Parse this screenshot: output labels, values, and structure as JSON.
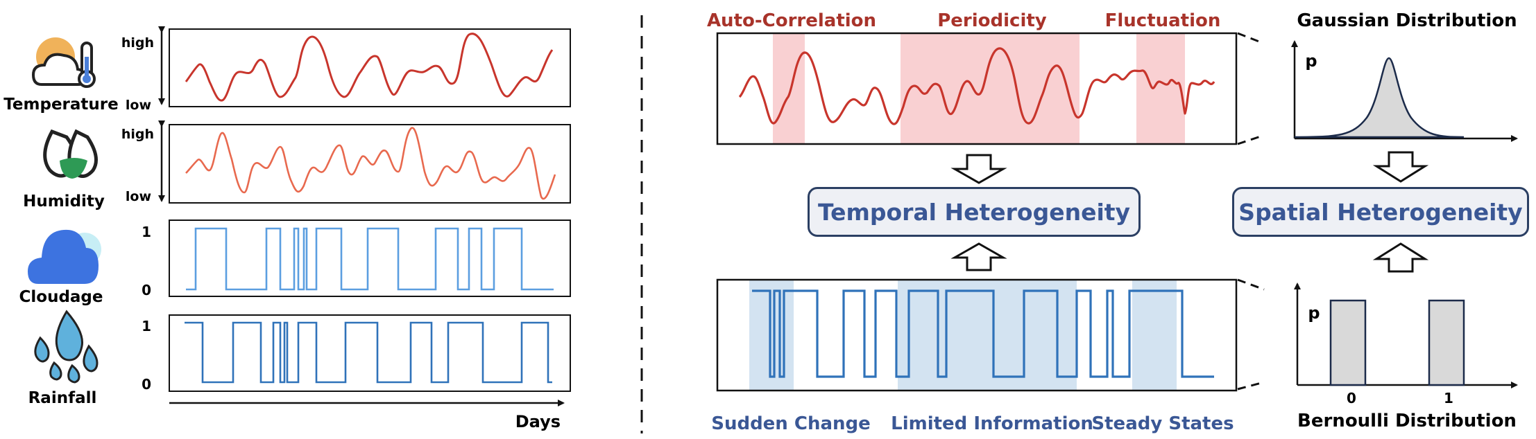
{
  "left": {
    "variables": [
      {
        "name": "Temperature",
        "icon": "thermometer-cloud-icon",
        "y_top": "high",
        "y_bottom": "low",
        "color": "#c8352c"
      },
      {
        "name": "Humidity",
        "icon": "water-drops-icon",
        "y_top": "high",
        "y_bottom": "low",
        "color": "#e8694e"
      },
      {
        "name": "Cloudage",
        "icon": "cloud-icon",
        "y_top": "1",
        "y_bottom": "0",
        "color": "#5b9ee0"
      },
      {
        "name": "Rainfall",
        "icon": "raindrops-icon",
        "y_top": "1",
        "y_bottom": "0",
        "color": "#2f72b9"
      }
    ],
    "x_axis_label": "Days"
  },
  "right": {
    "top_annotations": [
      "Auto-Correlation",
      "Periodicity",
      "Fluctuation"
    ],
    "bottom_annotations": [
      "Sudden Change",
      "Limited Information",
      "Steady States"
    ],
    "temporal_box": "Temporal Heterogeneity",
    "spatial_box": "Spatial Heterogeneity",
    "gaussian": {
      "title": "Gaussian Distribution",
      "y_label": "p"
    },
    "bernoulli": {
      "title": "Bernoulli Distribution",
      "y_label": "p",
      "ticks": [
        "0",
        "1"
      ]
    }
  },
  "colors": {
    "red_text": "#a8332a",
    "blue_text": "#3a5795",
    "red_shade": "#f9d0d2",
    "blue_shade": "#d3e3f1",
    "dark": "#111111"
  }
}
